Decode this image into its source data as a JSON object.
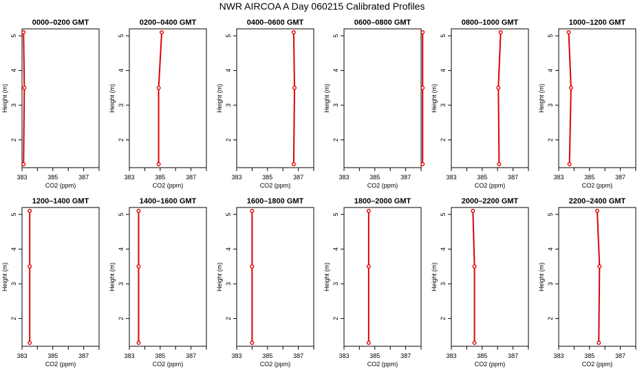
{
  "figure": {
    "title": "NWR AIRCOA A  Day 060215  Calibrated Profiles",
    "xlabel": "CO2 (ppm)",
    "ylabel": "Height (m)"
  },
  "colors": {
    "profile": "#dd0000",
    "axis": "#000000"
  },
  "chart_data": [
    {
      "type": "line",
      "title": "0000–0200 GMT",
      "xlabel": "CO2 (ppm)",
      "ylabel": "Height (m)",
      "xlim": [
        383,
        388
      ],
      "ylim": [
        1.2,
        5.2
      ],
      "xticks": [
        383,
        385,
        387
      ],
      "yticks": [
        2,
        3,
        4,
        5
      ],
      "x": [
        383.1,
        383.15,
        383.1
      ],
      "y": [
        1.3,
        3.5,
        5.1
      ]
    },
    {
      "type": "line",
      "title": "0200–0400 GMT",
      "xlabel": "CO2 (ppm)",
      "ylabel": "Height (m)",
      "xlim": [
        383,
        388
      ],
      "ylim": [
        1.2,
        5.2
      ],
      "xticks": [
        383,
        385,
        387
      ],
      "yticks": [
        2,
        3,
        4,
        5
      ],
      "x": [
        384.9,
        384.9,
        385.1
      ],
      "y": [
        1.3,
        3.5,
        5.1
      ]
    },
    {
      "type": "line",
      "title": "0400–0600 GMT",
      "xlabel": "CO2 (ppm)",
      "ylabel": "Height (m)",
      "xlim": [
        383,
        388
      ],
      "ylim": [
        1.2,
        5.2
      ],
      "xticks": [
        383,
        385,
        387
      ],
      "yticks": [
        2,
        3,
        4,
        5
      ],
      "x": [
        386.7,
        386.75,
        386.7
      ],
      "y": [
        1.3,
        3.5,
        5.1
      ]
    },
    {
      "type": "line",
      "title": "0600–0800 GMT",
      "xlabel": "CO2 (ppm)",
      "ylabel": "Height (m)",
      "xlim": [
        383,
        388
      ],
      "ylim": [
        1.2,
        5.2
      ],
      "xticks": [
        383,
        385,
        387
      ],
      "yticks": [
        2,
        3,
        4,
        5
      ],
      "x": [
        388.1,
        388.1,
        388.1
      ],
      "y": [
        1.3,
        3.5,
        5.1
      ]
    },
    {
      "type": "line",
      "title": "0800–1000 GMT",
      "xlabel": "CO2 (ppm)",
      "ylabel": "Height (m)",
      "xlim": [
        383,
        388
      ],
      "ylim": [
        1.2,
        5.2
      ],
      "xticks": [
        383,
        385,
        387
      ],
      "yticks": [
        2,
        3,
        4,
        5
      ],
      "x": [
        386.1,
        386.05,
        386.2
      ],
      "y": [
        1.3,
        3.5,
        5.1
      ]
    },
    {
      "type": "line",
      "title": "1000–1200 GMT",
      "xlabel": "CO2 (ppm)",
      "ylabel": "Height (m)",
      "xlim": [
        383,
        388
      ],
      "ylim": [
        1.2,
        5.2
      ],
      "xticks": [
        383,
        385,
        387
      ],
      "yticks": [
        2,
        3,
        4,
        5
      ],
      "x": [
        383.7,
        383.8,
        383.65
      ],
      "y": [
        1.3,
        3.5,
        5.1
      ]
    },
    {
      "type": "line",
      "title": "1200–1400 GMT",
      "xlabel": "CO2 (ppm)",
      "ylabel": "Height (m)",
      "xlim": [
        383,
        388
      ],
      "ylim": [
        1.2,
        5.2
      ],
      "xticks": [
        383,
        385,
        387
      ],
      "yticks": [
        2,
        3,
        4,
        5
      ],
      "x": [
        383.5,
        383.5,
        383.5
      ],
      "y": [
        1.3,
        3.5,
        5.1
      ]
    },
    {
      "type": "line",
      "title": "1400–1600 GMT",
      "xlabel": "CO2 (ppm)",
      "ylabel": "Height (m)",
      "xlim": [
        383,
        388
      ],
      "ylim": [
        1.2,
        5.2
      ],
      "xticks": [
        383,
        385,
        387
      ],
      "yticks": [
        2,
        3,
        4,
        5
      ],
      "x": [
        383.6,
        383.6,
        383.6
      ],
      "y": [
        1.3,
        3.5,
        5.1
      ]
    },
    {
      "type": "line",
      "title": "1600–1800 GMT",
      "xlabel": "CO2 (ppm)",
      "ylabel": "Height (m)",
      "xlim": [
        383,
        388
      ],
      "ylim": [
        1.2,
        5.2
      ],
      "xticks": [
        383,
        385,
        387
      ],
      "yticks": [
        2,
        3,
        4,
        5
      ],
      "x": [
        384.0,
        384.0,
        384.0
      ],
      "y": [
        1.3,
        3.5,
        5.1
      ]
    },
    {
      "type": "line",
      "title": "1800–2000 GMT",
      "xlabel": "CO2 (ppm)",
      "ylabel": "Height (m)",
      "xlim": [
        383,
        388
      ],
      "ylim": [
        1.2,
        5.2
      ],
      "xticks": [
        383,
        385,
        387
      ],
      "yticks": [
        2,
        3,
        4,
        5
      ],
      "x": [
        384.6,
        384.6,
        384.6
      ],
      "y": [
        1.3,
        3.5,
        5.1
      ]
    },
    {
      "type": "line",
      "title": "2000–2200 GMT",
      "xlabel": "CO2 (ppm)",
      "ylabel": "Height (m)",
      "xlim": [
        383,
        388
      ],
      "ylim": [
        1.2,
        5.2
      ],
      "xticks": [
        383,
        385,
        387
      ],
      "yticks": [
        2,
        3,
        4,
        5
      ],
      "x": [
        384.5,
        384.5,
        384.4
      ],
      "y": [
        1.3,
        3.5,
        5.1
      ]
    },
    {
      "type": "line",
      "title": "2200–2400 GMT",
      "xlabel": "CO2 (ppm)",
      "ylabel": "Height (m)",
      "xlim": [
        383,
        388
      ],
      "ylim": [
        1.2,
        5.2
      ],
      "xticks": [
        383,
        385,
        387
      ],
      "yticks": [
        2,
        3,
        4,
        5
      ],
      "x": [
        385.6,
        385.65,
        385.5
      ],
      "y": [
        1.3,
        3.5,
        5.1
      ]
    }
  ]
}
